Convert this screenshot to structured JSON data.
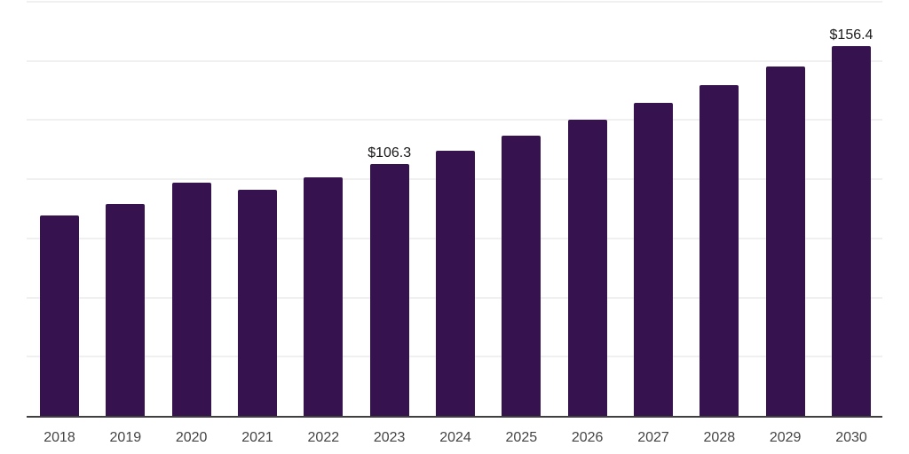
{
  "chart_data": {
    "type": "bar",
    "title": "",
    "xlabel": "",
    "ylabel": "",
    "categories": [
      "2018",
      "2019",
      "2020",
      "2021",
      "2022",
      "2023",
      "2024",
      "2025",
      "2026",
      "2027",
      "2028",
      "2029",
      "2030"
    ],
    "values": [
      84.6,
      89.4,
      98.5,
      95.7,
      100.8,
      106.3,
      112.2,
      118.4,
      125.3,
      132.4,
      139.9,
      147.8,
      156.4
    ],
    "annotations": [
      {
        "category": "2023",
        "text": "$106.3"
      },
      {
        "category": "2030",
        "text": "$156.4"
      }
    ],
    "ylim": [
      0,
      175
    ],
    "grid": true,
    "grid_step": 25,
    "y_tick_labels": "hidden",
    "legend": "none",
    "colors": {
      "bar": "#36124E",
      "grid_line": "#F0F0F0",
      "axis_line": "#3F3F3F",
      "tick_label": "#444444",
      "annotation_text": "#1A1A1A",
      "background": "#FFFFFF"
    }
  }
}
